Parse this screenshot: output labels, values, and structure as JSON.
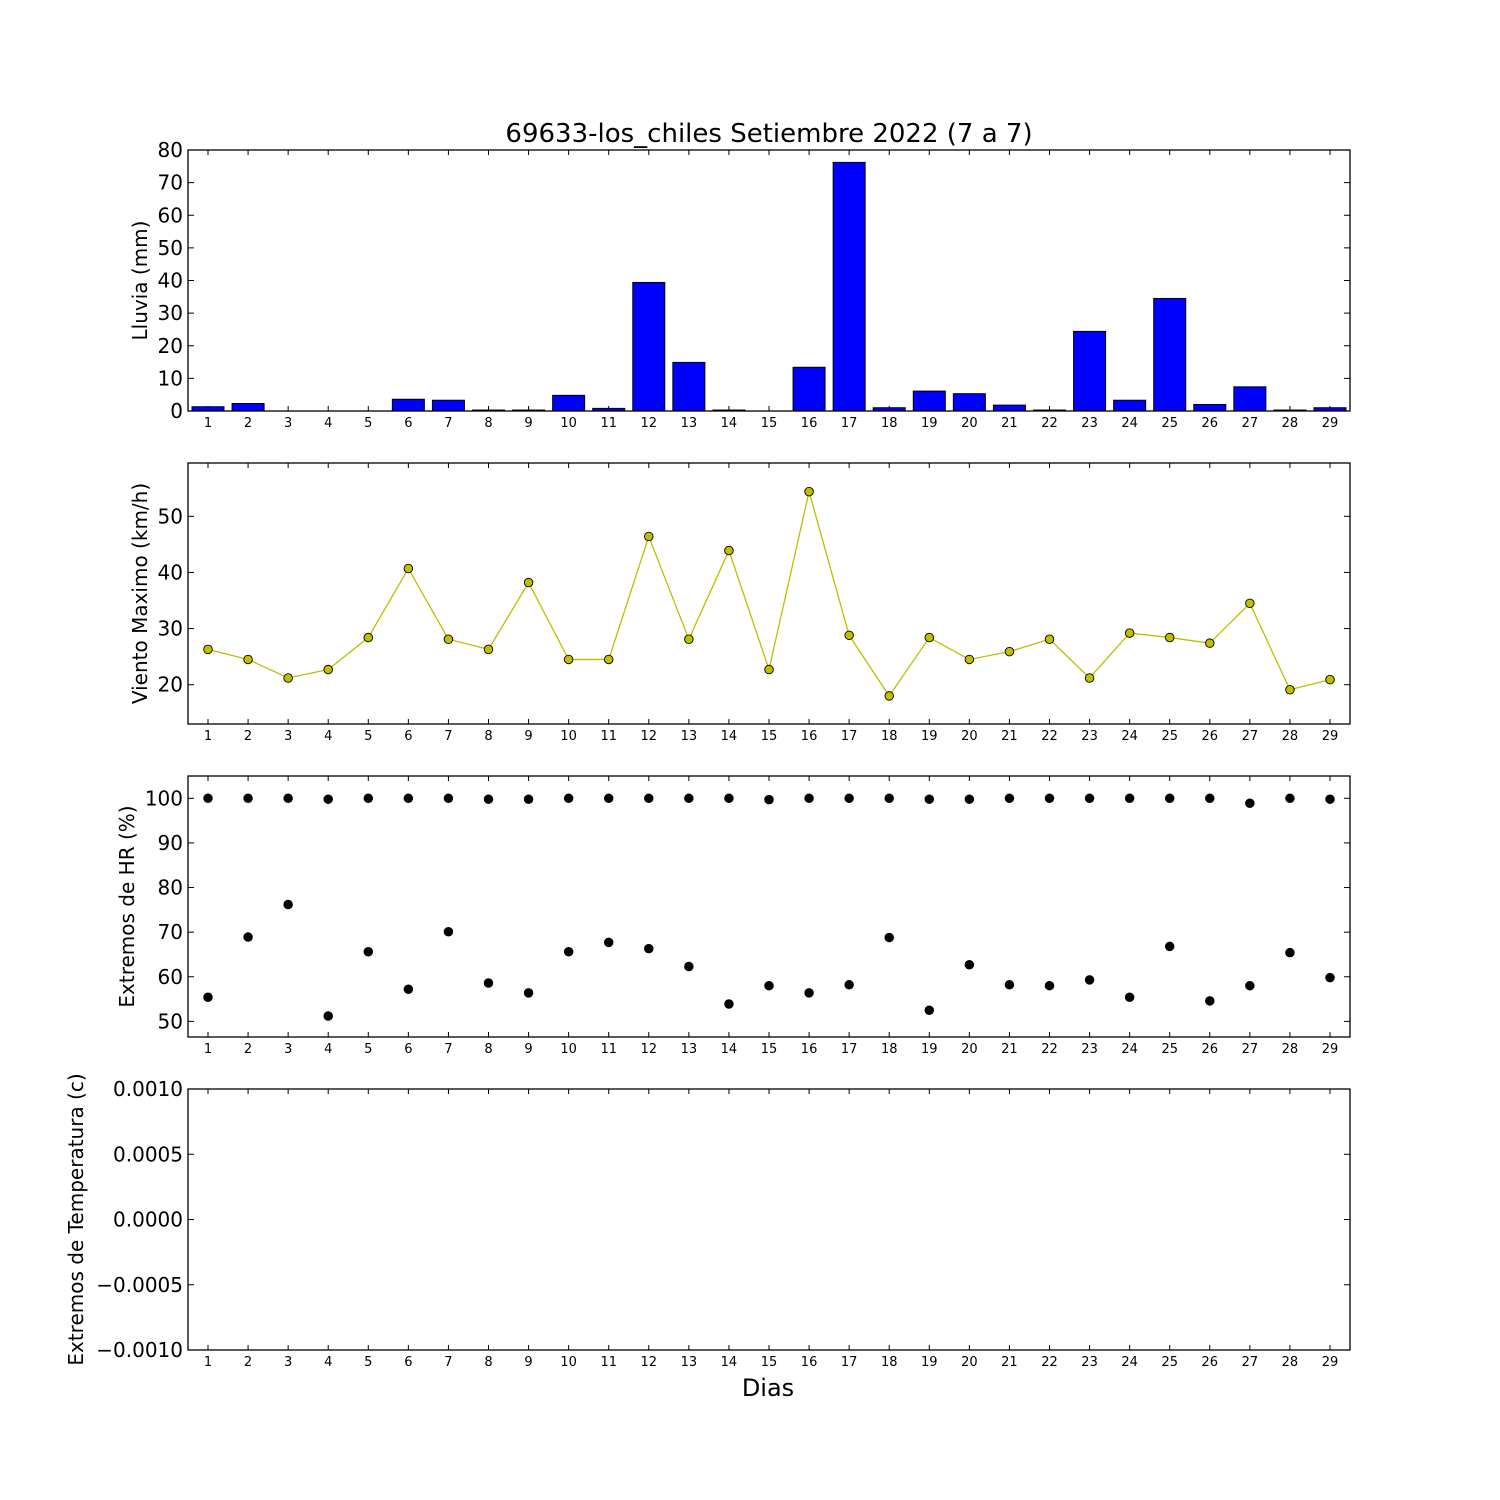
{
  "figure_title": "69633-los_chiles Setiembre 2022  (7 a 7)",
  "xlabel": "Dias",
  "colors": {
    "rain": "#0000ff",
    "wind": "#bf00bf",
    "hr_max": "#bfbf00",
    "hr_min": "#00bfbf"
  },
  "chart_data": [
    {
      "type": "bar",
      "ylabel": "Lluvia (mm)",
      "ylim": [
        0,
        80
      ],
      "yticks": [
        0,
        10,
        20,
        30,
        40,
        50,
        60,
        70,
        80
      ],
      "ytick_labels": [
        "0",
        "10",
        "20",
        "30",
        "40",
        "50",
        "60",
        "70",
        "80"
      ],
      "categories": [
        "1",
        "2",
        "3",
        "4",
        "5",
        "6",
        "7",
        "8",
        "9",
        "10",
        "11",
        "12",
        "13",
        "14",
        "15",
        "16",
        "17",
        "18",
        "19",
        "20",
        "21",
        "22",
        "23",
        "24",
        "25",
        "26",
        "27",
        "28",
        "29"
      ],
      "values": [
        1.3,
        2.3,
        0,
        0,
        0,
        3.6,
        3.3,
        0.3,
        0.3,
        4.8,
        0.8,
        39.4,
        14.9,
        0.3,
        0,
        13.4,
        76.2,
        1.0,
        6.1,
        5.3,
        1.8,
        0.3,
        24.4,
        3.3,
        34.5,
        2.0,
        7.4,
        0.3,
        1.0
      ]
    },
    {
      "type": "line",
      "ylabel": "Viento Maximo (km/h)",
      "ylim": [
        13,
        59.5
      ],
      "yticks": [
        20,
        30,
        40,
        50
      ],
      "ytick_labels": [
        "20",
        "30",
        "40",
        "50"
      ],
      "x": [
        1,
        2,
        3,
        4,
        5,
        6,
        7,
        8,
        9,
        10,
        11,
        12,
        13,
        14,
        15,
        16,
        17,
        18,
        19,
        20,
        21,
        22,
        23,
        24,
        25,
        26,
        27,
        28,
        29
      ],
      "x_tick_labels": [
        "1",
        "2",
        "3",
        "4",
        "5",
        "6",
        "7",
        "8",
        "9",
        "10",
        "11",
        "12",
        "13",
        "14",
        "15",
        "16",
        "17",
        "18",
        "19",
        "20",
        "21",
        "22",
        "23",
        "24",
        "25",
        "26",
        "27",
        "28",
        "29"
      ],
      "series": [
        {
          "values": [
            26.3,
            24.5,
            21.2,
            22.7,
            28.4,
            40.7,
            28.1,
            26.3,
            38.2,
            24.5,
            24.5,
            46.4,
            28.1,
            43.9,
            22.7,
            54.4,
            28.8,
            18.0,
            28.4,
            24.5,
            25.9,
            28.1,
            21.2,
            29.2,
            28.4,
            27.4,
            34.5,
            19.1,
            20.9
          ]
        }
      ]
    },
    {
      "type": "line",
      "ylabel": "Extremos de HR (%)",
      "ylim": [
        46.5,
        105
      ],
      "yticks": [
        50,
        60,
        70,
        80,
        90,
        100
      ],
      "ytick_labels": [
        "50",
        "60",
        "70",
        "80",
        "90",
        "100"
      ],
      "x": [
        1,
        2,
        3,
        4,
        5,
        6,
        7,
        8,
        9,
        10,
        11,
        12,
        13,
        14,
        15,
        16,
        17,
        18,
        19,
        20,
        21,
        22,
        23,
        24,
        25,
        26,
        27,
        28,
        29
      ],
      "x_tick_labels": [
        "1",
        "2",
        "3",
        "4",
        "5",
        "6",
        "7",
        "8",
        "9",
        "10",
        "11",
        "12",
        "13",
        "14",
        "15",
        "16",
        "17",
        "18",
        "19",
        "20",
        "21",
        "22",
        "23",
        "24",
        "25",
        "26",
        "27",
        "28",
        "29"
      ],
      "series": [
        {
          "values": [
            100,
            100,
            100,
            99.8,
            100,
            100,
            100,
            99.8,
            99.8,
            100,
            100,
            100,
            100,
            100,
            99.7,
            100,
            100,
            100,
            99.8,
            99.8,
            100,
            100,
            100,
            100,
            100,
            100,
            98.9,
            100,
            99.8
          ]
        },
        {
          "values": [
            55.4,
            68.9,
            76.2,
            51.2,
            65.6,
            57.2,
            70.1,
            58.6,
            56.4,
            65.6,
            67.7,
            66.3,
            62.3,
            53.9,
            58.0,
            56.4,
            58.2,
            68.8,
            52.5,
            62.7,
            58.2,
            58.0,
            59.3,
            55.4,
            66.8,
            54.6,
            58.0,
            65.4,
            59.8
          ]
        }
      ]
    },
    {
      "type": "line",
      "ylabel": "Extremos de Temperatura (c)",
      "ylim": [
        -0.001,
        0.001
      ],
      "yticks": [
        -0.001,
        -0.0005,
        0,
        0.0005,
        0.001
      ],
      "ytick_labels": [
        "−0.0010",
        "−0.0005",
        "0.0000",
        "0.0005",
        "0.0010"
      ],
      "x": [
        1,
        2,
        3,
        4,
        5,
        6,
        7,
        8,
        9,
        10,
        11,
        12,
        13,
        14,
        15,
        16,
        17,
        18,
        19,
        20,
        21,
        22,
        23,
        24,
        25,
        26,
        27,
        28,
        29
      ],
      "x_tick_labels": [
        "1",
        "2",
        "3",
        "4",
        "5",
        "6",
        "7",
        "8",
        "9",
        "10",
        "11",
        "12",
        "13",
        "14",
        "15",
        "16",
        "17",
        "18",
        "19",
        "20",
        "21",
        "22",
        "23",
        "24",
        "25",
        "26",
        "27",
        "28",
        "29"
      ],
      "series": []
    }
  ]
}
